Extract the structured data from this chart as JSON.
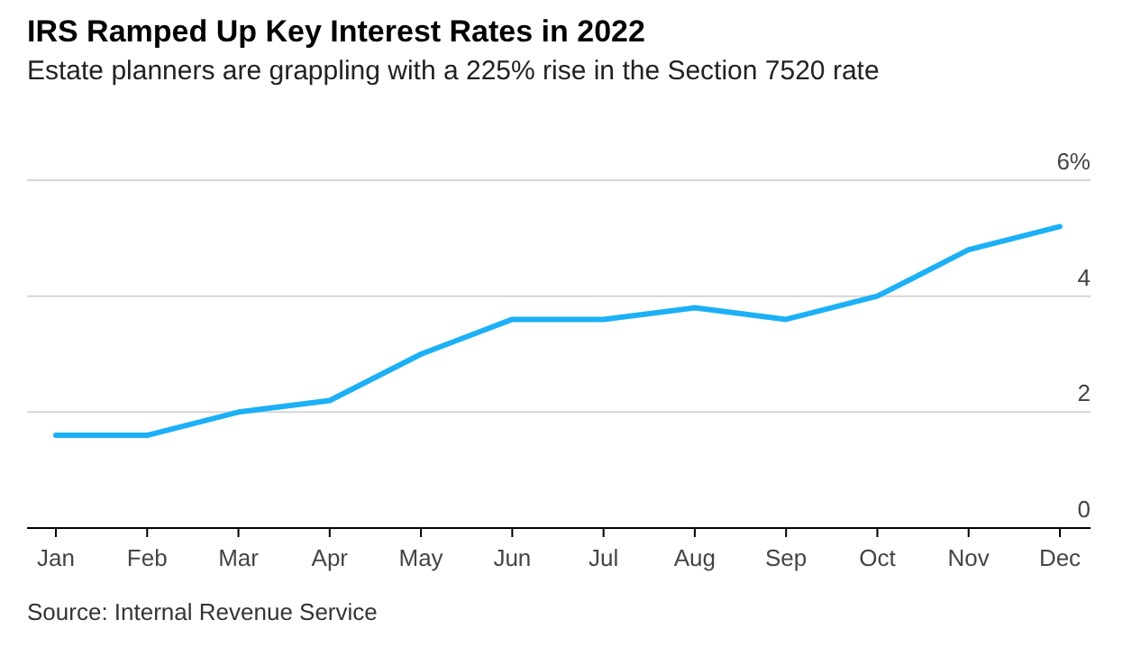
{
  "chart_data": {
    "type": "line",
    "title": "IRS Ramped Up Key Interest Rates in 2022",
    "subtitle": "Estate planners are grappling with a 225% rise in the Section 7520 rate",
    "categories": [
      "Jan",
      "Feb",
      "Mar",
      "Apr",
      "May",
      "Jun",
      "Jul",
      "Aug",
      "Sep",
      "Oct",
      "Nov",
      "Dec"
    ],
    "series": [
      {
        "color": "#1cb0f6",
        "values": [
          1.6,
          1.6,
          2.0,
          2.2,
          3.0,
          3.6,
          3.6,
          3.8,
          3.6,
          4.0,
          4.8,
          5.2
        ]
      }
    ],
    "ylim": [
      0,
      6
    ],
    "yticks": [
      0,
      2,
      4,
      {
        "value": 6,
        "label": "6%"
      }
    ],
    "grid": "y",
    "annotations": [
      "Source: Internal Revenue Service"
    ]
  }
}
